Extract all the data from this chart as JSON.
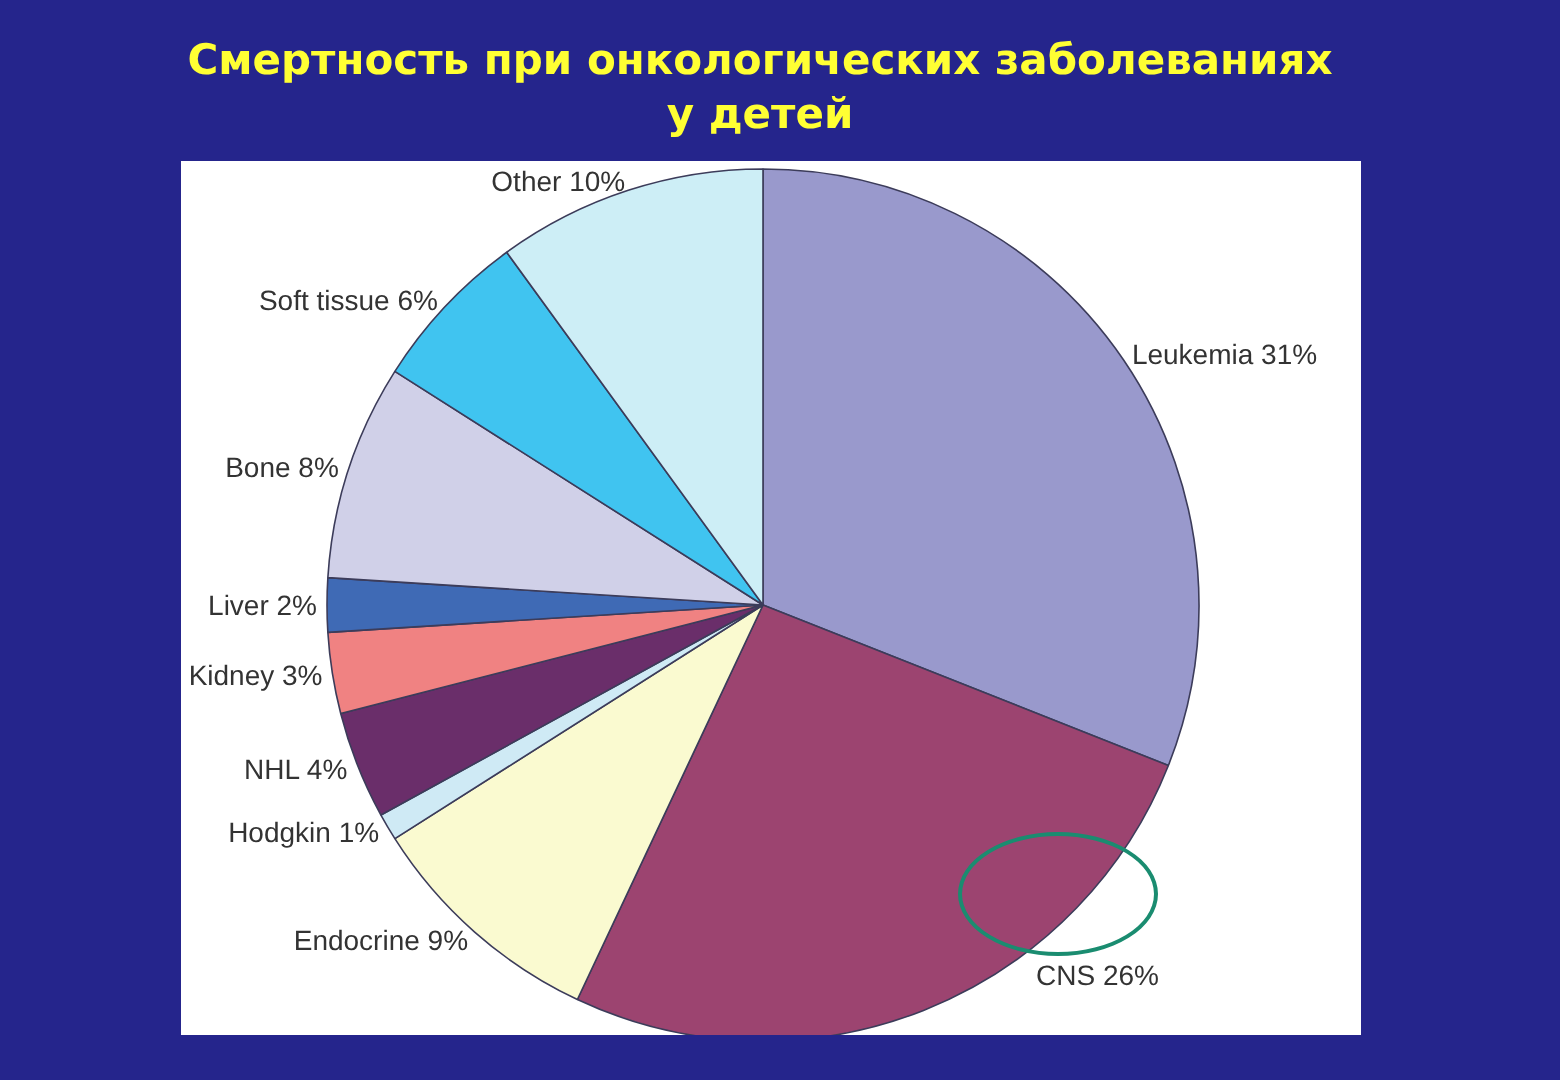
{
  "chart_data": {
    "type": "pie",
    "title": "Смертность при онкологических заболеваниях у детей",
    "categories": [
      "Leukemia",
      "CNS",
      "Endocrine",
      "Hodgkin",
      "NHL",
      "Kidney",
      "Liver",
      "Bone",
      "Soft tissue",
      "Other"
    ],
    "values": [
      31,
      26,
      9,
      1,
      4,
      3,
      2,
      8,
      6,
      10
    ],
    "value_labels": [
      "31%",
      "26%",
      "9%",
      "1%",
      "4%",
      "3%",
      "2%",
      "8%",
      "6%",
      "10%"
    ],
    "colors": [
      "#9999cc",
      "#9c4470",
      "#fafad0",
      "#cfeaf5",
      "#6a2e6a",
      "#f08282",
      "#3f6ab5",
      "#d0d0e8",
      "#40c4f0",
      "#cdeef6"
    ]
  }
}
